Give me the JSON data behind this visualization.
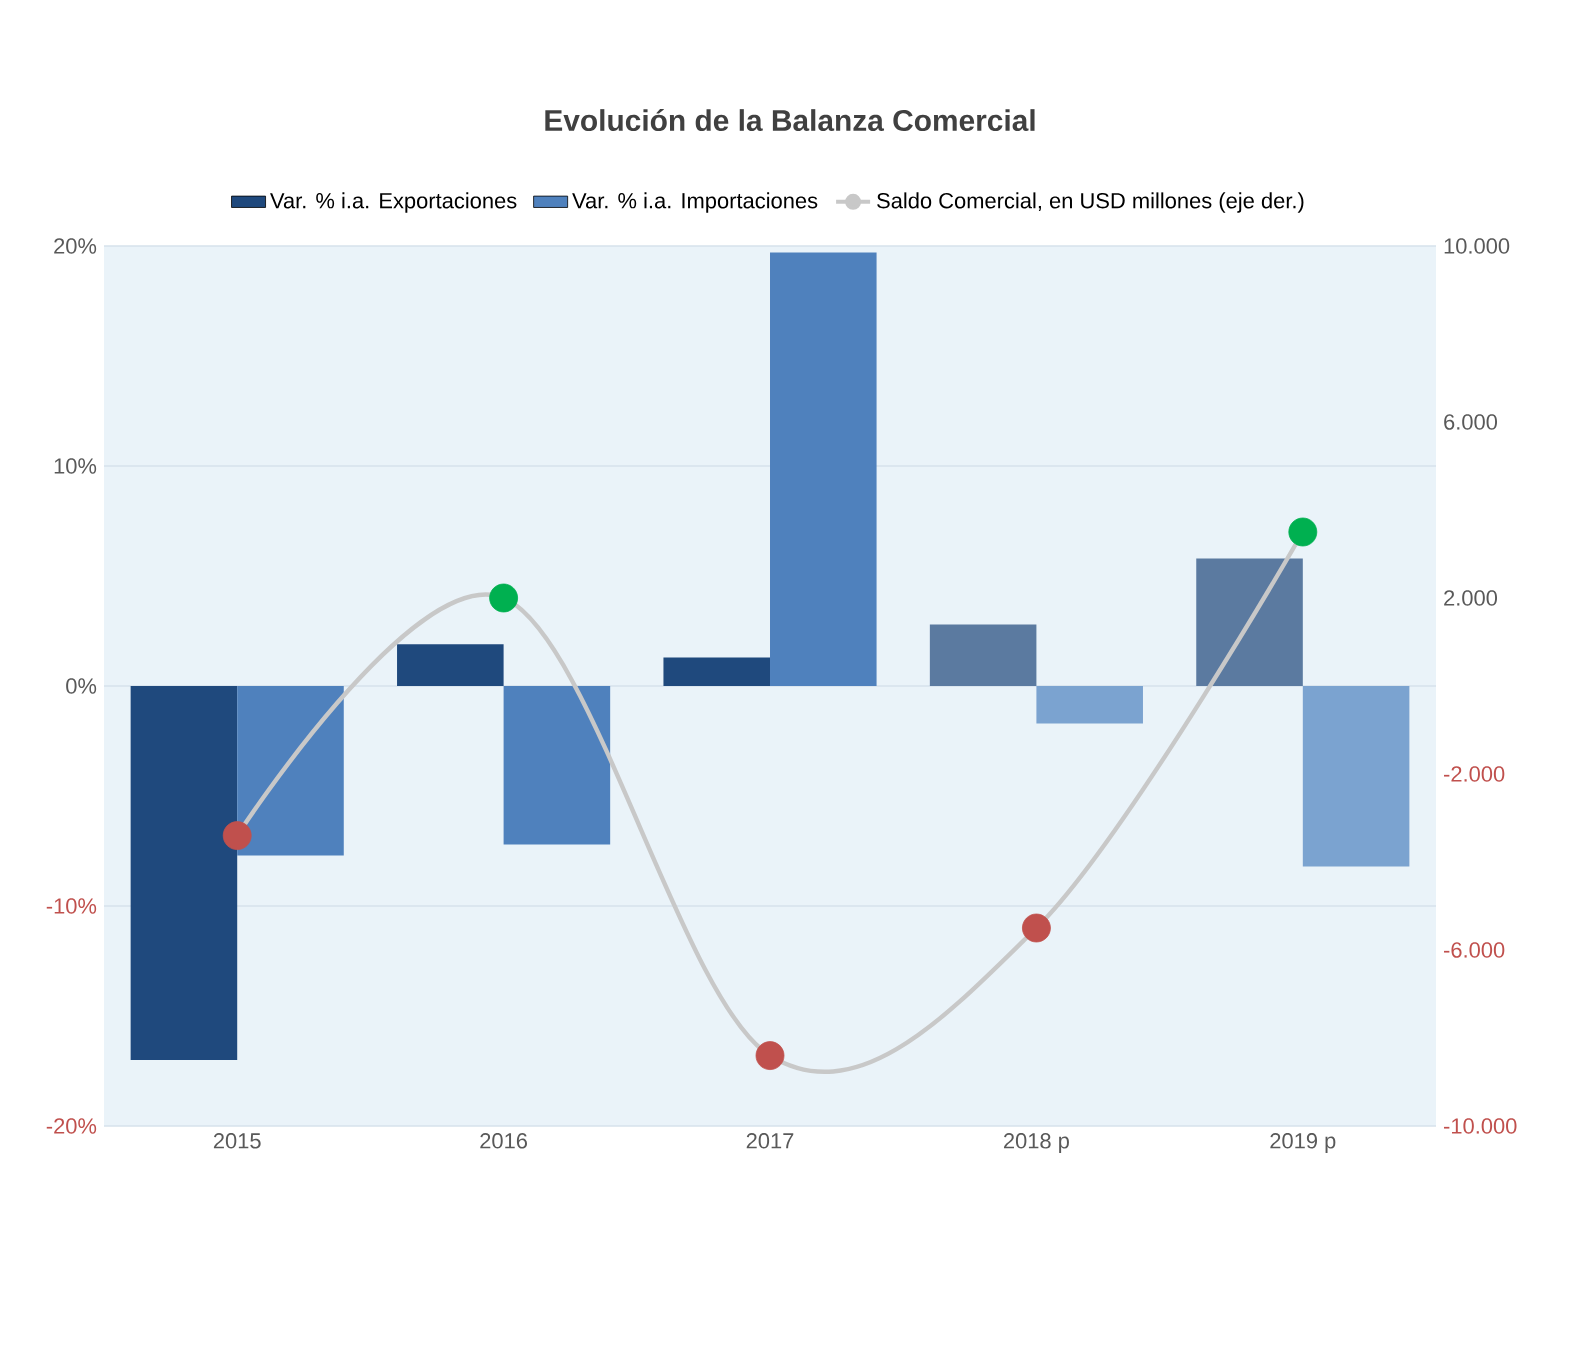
{
  "chart_data": {
    "type": "bar",
    "title": "Evolución de la Balanza Comercial",
    "categories": [
      "2015",
      "2016",
      "2017",
      "2018 p",
      "2019 p"
    ],
    "series": [
      {
        "name": "Var. % i.a. Exportaciones",
        "color": "#1f497d",
        "colors": [
          "#1f497d",
          "#1f497d",
          "#1f497d",
          "#5b7aa0",
          "#5b7aa0"
        ],
        "values": [
          -17.0,
          1.9,
          1.3,
          2.8,
          5.8
        ]
      },
      {
        "name": "Var. % i.a. Importaciones",
        "color": "#4f81bd",
        "colors": [
          "#4f81bd",
          "#4f81bd",
          "#4f81bd",
          "#7ba3d0",
          "#7ba3d0"
        ],
        "values": [
          -7.7,
          -7.2,
          19.7,
          -1.7,
          -8.2
        ]
      },
      {
        "name": "Saldo Comercial, en USD millones (eje der.)",
        "type": "line",
        "axis": "y2",
        "marker": "circle",
        "color": "#c8c8c8",
        "colors": [
          "#c0504d",
          "#00b050",
          "#c0504d",
          "#c0504d",
          "#00b050"
        ],
        "values": [
          -3400,
          2000,
          -8400,
          -5500,
          3500
        ]
      }
    ],
    "ylim": [
      -20,
      20
    ],
    "yticks": [
      {
        "value": -20,
        "label": "-20%"
      },
      {
        "value": -10,
        "label": "-10%"
      },
      {
        "value": 0,
        "label": "0%"
      },
      {
        "value": 10,
        "label": "10%"
      },
      {
        "value": 20,
        "label": "20%"
      }
    ],
    "y2lim": [
      -10000,
      10000
    ],
    "y2ticks": [
      {
        "value": -10000,
        "label": "-10.000"
      },
      {
        "value": -6000,
        "label": "-6.000"
      },
      {
        "value": -2000,
        "label": "-2.000"
      },
      {
        "value": 2000,
        "label": "2.000"
      },
      {
        "value": 6000,
        "label": "6.000"
      },
      {
        "value": 10000,
        "label": "10.000"
      }
    ],
    "grid": "y",
    "legend": "top"
  }
}
